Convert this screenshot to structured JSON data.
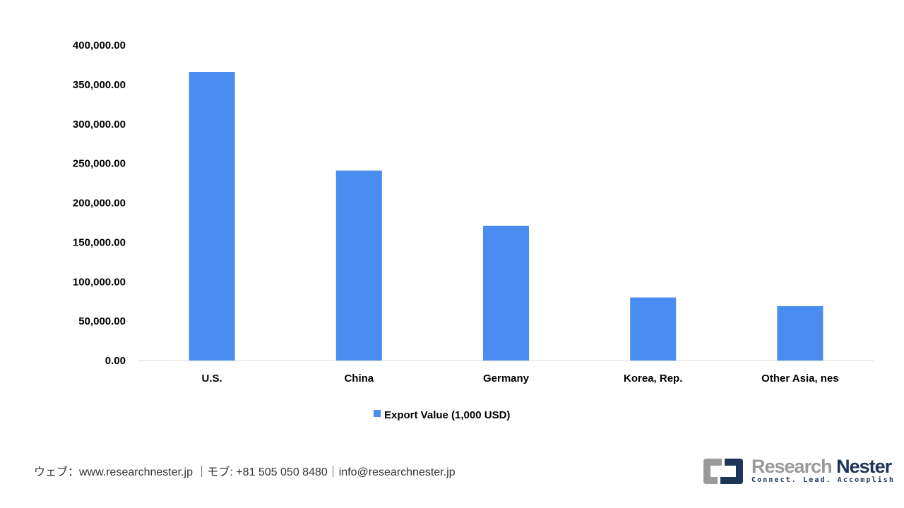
{
  "chart_data": {
    "type": "bar",
    "title": "",
    "xlabel": "",
    "ylabel": "",
    "categories": [
      "U.S.",
      "China",
      "Germany",
      "Korea, Rep.",
      "Other Asia, nes"
    ],
    "series": [
      {
        "name": "Export Value (1,000 USD)",
        "values": [
          366000,
          241000,
          171000,
          80000,
          69000
        ],
        "color": "#4a8cf0"
      }
    ],
    "ylim": [
      0,
      400000
    ],
    "yticks": [
      0,
      50000,
      100000,
      150000,
      200000,
      250000,
      300000,
      350000,
      400000
    ],
    "ytick_labels": [
      "0.00",
      "50,000.00",
      "100,000.00",
      "150,000.00",
      "200,000.00",
      "250,000.00",
      "300,000.00",
      "350,000.00",
      "400,000.00"
    ],
    "grid": false,
    "legend_position": "bottom"
  },
  "footer": {
    "contact": "ウェブ：www.researchnester.jp ｜モブ: +81 505 050 8480｜info@researchnester.jp"
  },
  "logo": {
    "name_a": "Research",
    "name_b": "Nester",
    "tagline": "Connect. Lead. Accomplish"
  }
}
